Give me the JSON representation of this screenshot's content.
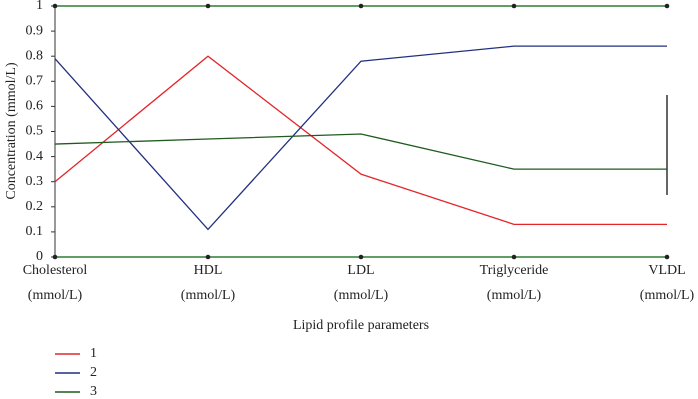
{
  "chart_data": {
    "type": "line",
    "x_label": "Lipid profile parameters",
    "y_label": "Concentration (mmol/L)",
    "categories": [
      [
        "Cholesterol",
        "(mmol/L)"
      ],
      [
        "HDL",
        "(mmol/L)"
      ],
      [
        "LDL",
        "(mmol/L)"
      ],
      [
        "Triglyceride",
        "(mmol/L)"
      ],
      [
        "VLDL",
        "(mmol/L)"
      ]
    ],
    "series": [
      {
        "name": "1",
        "color": "#e3262a",
        "values": [
          0.3,
          0.8,
          0.33,
          0.13,
          0.13
        ]
      },
      {
        "name": "2",
        "color": "#22307f",
        "values": [
          0.79,
          0.11,
          0.78,
          0.84,
          0.84
        ]
      },
      {
        "name": "3",
        "color": "#1f5a1f",
        "values": [
          0.45,
          0.47,
          0.49,
          0.35,
          0.35
        ]
      }
    ],
    "ylim": [
      0,
      1
    ],
    "yticks": [
      0,
      0.1,
      0.2,
      0.3,
      0.4,
      0.5,
      0.6,
      0.7,
      0.8,
      0.9,
      1
    ]
  }
}
